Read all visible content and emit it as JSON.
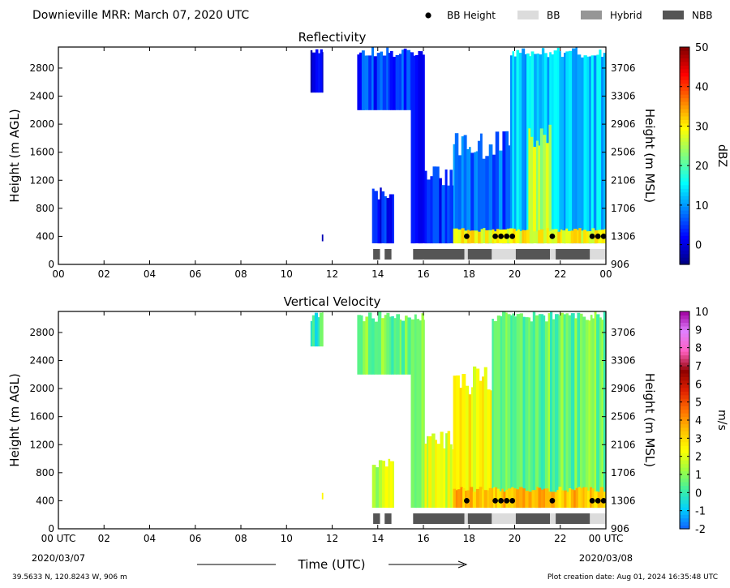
{
  "header": {
    "title": "Downieville MRR:  March 07, 2020 UTC",
    "legend": [
      {
        "label": "BB Height",
        "marker": "dot",
        "color": "#000000"
      },
      {
        "label": "BB",
        "marker": "box",
        "color": "#dcdcdc"
      },
      {
        "label": "Hybrid",
        "marker": "box",
        "color": "#969696"
      },
      {
        "label": "NBB",
        "marker": "box",
        "color": "#555555"
      }
    ]
  },
  "footer": {
    "location": "39.5633 N, 120.8243 W, 906 m",
    "creation": "Plot creation date: Aug 01, 2024 16:35:48 UTC",
    "xlabel": "Time (UTC)",
    "start_date": "2020/03/07",
    "end_date": "2020/03/08"
  },
  "chart_data": [
    {
      "type": "heatmap",
      "title": "Reflectivity",
      "ylabel": "Height (m AGL)",
      "y2label": "Height (m MSL)",
      "xticks": [
        "00",
        "02",
        "04",
        "06",
        "08",
        "10",
        "12",
        "14",
        "16",
        "18",
        "20",
        "22",
        "00"
      ],
      "xlim": [
        0,
        24
      ],
      "ylim": [
        0,
        3100
      ],
      "yticks": [
        0,
        400,
        800,
        1200,
        1600,
        2000,
        2400,
        2800
      ],
      "y2ticks": [
        906,
        1306,
        1706,
        2106,
        2506,
        2906,
        3306,
        3706
      ],
      "colorbar": {
        "label": "dBZ",
        "range": [
          -5,
          50
        ],
        "ticks": [
          0,
          10,
          20,
          30,
          40,
          50
        ],
        "colors": [
          "#00007f",
          "#0000ff",
          "#0080ff",
          "#00ffff",
          "#80ff80",
          "#ffff00",
          "#ff8000",
          "#ff0000",
          "#7f0000"
        ]
      },
      "bb_height": {
        "y": 400,
        "x": [
          17.9,
          19.15,
          19.4,
          19.65,
          19.9,
          21.65,
          23.4,
          23.65,
          23.9
        ]
      },
      "bb_type_bars": [
        {
          "start": 13.8,
          "end": 14.1,
          "type": "NBB"
        },
        {
          "start": 14.3,
          "end": 14.6,
          "type": "NBB"
        },
        {
          "start": 15.55,
          "end": 17.8,
          "type": "NBB"
        },
        {
          "start": 17.8,
          "end": 17.95,
          "type": "BB"
        },
        {
          "start": 17.95,
          "end": 19.0,
          "type": "NBB"
        },
        {
          "start": 19.0,
          "end": 20.05,
          "type": "BB"
        },
        {
          "start": 20.05,
          "end": 21.55,
          "type": "NBB"
        },
        {
          "start": 21.55,
          "end": 21.8,
          "type": "BB"
        },
        {
          "start": 21.8,
          "end": 23.3,
          "type": "NBB"
        },
        {
          "start": 23.3,
          "end": 24.0,
          "type": "BB"
        }
      ],
      "echo_regions": [
        {
          "x0": 11.05,
          "x1": 11.6,
          "ybot": 2450,
          "ytop": 3100,
          "level": 0.1
        },
        {
          "x0": 11.55,
          "x1": 11.6,
          "ybot": 330,
          "ytop": 450,
          "level": 0.12
        },
        {
          "x0": 13.1,
          "x1": 15.45,
          "ybot": 2200,
          "ytop": 3100,
          "level": 0.18
        },
        {
          "x0": 13.75,
          "x1": 14.7,
          "ybot": 300,
          "ytop": 1100,
          "level": 0.14
        },
        {
          "x0": 15.45,
          "x1": 16.05,
          "ybot": 300,
          "ytop": 3100,
          "level": 0.15
        },
        {
          "x0": 16.05,
          "x1": 17.3,
          "ybot": 300,
          "ytop": 1400,
          "level": 0.17
        },
        {
          "x0": 17.3,
          "x1": 19.8,
          "ybot": 300,
          "ytop": 1900,
          "level": 0.22
        },
        {
          "x0": 19.8,
          "x1": 24.0,
          "ybot": 300,
          "ytop": 3100,
          "level": 0.32
        },
        {
          "x0": 20.6,
          "x1": 21.6,
          "ybot": 300,
          "ytop": 2000,
          "level": 0.55
        },
        {
          "x0": 17.3,
          "x1": 24.0,
          "ybot": 300,
          "ytop": 520,
          "level": 0.62
        }
      ]
    },
    {
      "type": "heatmap",
      "title": "Vertical Velocity",
      "ylabel": "Height (m AGL)",
      "y2label": "Height (m MSL)",
      "xticks": [
        "00 UTC",
        "02",
        "04",
        "06",
        "08",
        "10",
        "12",
        "14",
        "16",
        "18",
        "20",
        "22",
        "00 UTC"
      ],
      "xlim": [
        0,
        24
      ],
      "ylim": [
        0,
        3100
      ],
      "yticks": [
        0,
        400,
        800,
        1200,
        1600,
        2000,
        2400,
        2800
      ],
      "y2ticks": [
        906,
        1306,
        1706,
        2106,
        2506,
        2906,
        3306,
        3706
      ],
      "colorbar": {
        "label": "m/s",
        "range": [
          -2,
          10
        ],
        "ticks": [
          -2,
          -1,
          0,
          1,
          2,
          3,
          4,
          5,
          6,
          7,
          8,
          9,
          10
        ],
        "colors": [
          "#1060ff",
          "#00d0ff",
          "#40f0a0",
          "#a0ff40",
          "#ffff00",
          "#ffc000",
          "#ff7000",
          "#e02000",
          "#900000",
          "#ff60c0",
          "#e080ff",
          "#a000a0"
        ]
      },
      "bb_height": {
        "y": 400,
        "x": [
          17.9,
          19.15,
          19.4,
          19.65,
          19.9,
          21.65,
          23.4,
          23.65,
          23.9
        ]
      },
      "bb_type_bars": [
        {
          "start": 13.8,
          "end": 14.1,
          "type": "NBB"
        },
        {
          "start": 14.3,
          "end": 14.6,
          "type": "NBB"
        },
        {
          "start": 15.55,
          "end": 17.8,
          "type": "NBB"
        },
        {
          "start": 17.8,
          "end": 17.95,
          "type": "BB"
        },
        {
          "start": 17.95,
          "end": 19.0,
          "type": "NBB"
        },
        {
          "start": 19.0,
          "end": 20.05,
          "type": "BB"
        },
        {
          "start": 20.05,
          "end": 21.55,
          "type": "NBB"
        },
        {
          "start": 21.55,
          "end": 21.8,
          "type": "BB"
        },
        {
          "start": 21.8,
          "end": 23.3,
          "type": "NBB"
        },
        {
          "start": 23.3,
          "end": 24.0,
          "type": "BB"
        }
      ],
      "echo_regions": [
        {
          "x0": 11.05,
          "x1": 11.6,
          "ybot": 2600,
          "ytop": 3100,
          "level": 0.17
        },
        {
          "x0": 11.55,
          "x1": 11.6,
          "ybot": 420,
          "ytop": 520,
          "level": 0.35
        },
        {
          "x0": 13.1,
          "x1": 15.45,
          "ybot": 2200,
          "ytop": 3100,
          "level": 0.22
        },
        {
          "x0": 13.75,
          "x1": 14.7,
          "ybot": 300,
          "ytop": 1000,
          "level": 0.3
        },
        {
          "x0": 15.45,
          "x1": 16.05,
          "ybot": 300,
          "ytop": 3100,
          "level": 0.28
        },
        {
          "x0": 16.05,
          "x1": 17.3,
          "ybot": 300,
          "ytop": 1400,
          "level": 0.33
        },
        {
          "x0": 17.3,
          "x1": 19.0,
          "ybot": 300,
          "ytop": 2400,
          "level": 0.36
        },
        {
          "x0": 19.0,
          "x1": 24.0,
          "ybot": 300,
          "ytop": 3100,
          "level": 0.22
        },
        {
          "x0": 17.3,
          "x1": 24.0,
          "ybot": 300,
          "ytop": 600,
          "level": 0.45
        }
      ]
    }
  ]
}
